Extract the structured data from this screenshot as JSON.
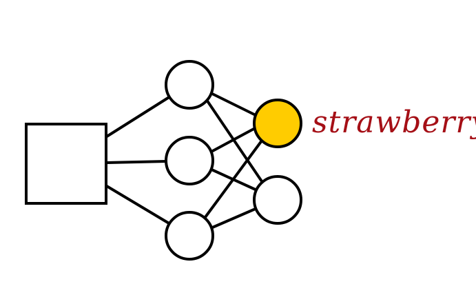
{
  "diagram": {
    "input": {
      "kind": "square"
    },
    "hidden_layer": {
      "node_count": 3
    },
    "output_layer": {
      "node_count": 2,
      "nodes": [
        {
          "highlighted": true,
          "label": "strawberry"
        },
        {
          "highlighted": false,
          "label": ""
        }
      ]
    },
    "colors": {
      "stroke": "#000000",
      "node_fill": "#ffffff",
      "highlight_fill": "#FFCC00",
      "label_color": "#A50F16"
    }
  }
}
